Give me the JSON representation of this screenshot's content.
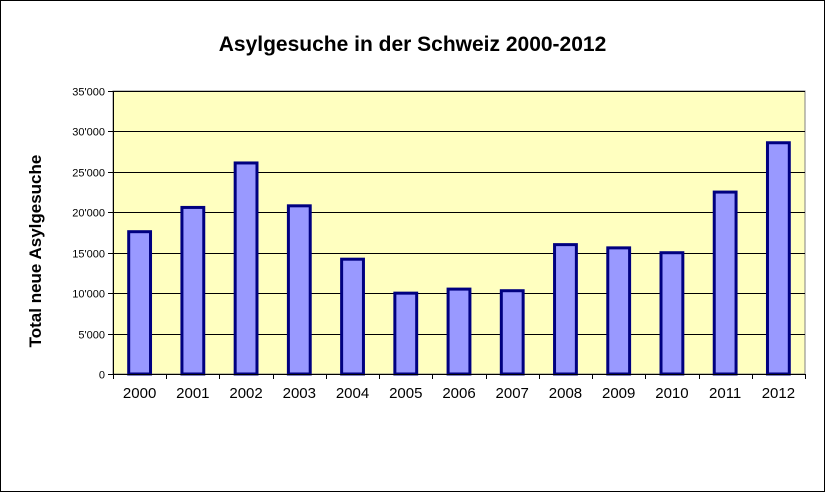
{
  "chart_data": {
    "type": "bar",
    "title": "Asylgesuche  in der Schweiz 2000-2012",
    "ylabel": "Total neue Asylgesuche",
    "xlabel": "",
    "categories": [
      "2000",
      "2001",
      "2002",
      "2003",
      "2004",
      "2005",
      "2006",
      "2007",
      "2008",
      "2009",
      "2010",
      "2011",
      "2012"
    ],
    "values": [
      17600,
      20600,
      26100,
      20800,
      14200,
      10000,
      10500,
      10300,
      16000,
      15600,
      15000,
      22500,
      28600
    ],
    "ylim": [
      0,
      35000
    ],
    "yticks": [
      0,
      5000,
      10000,
      15000,
      20000,
      25000,
      30000,
      35000
    ],
    "ytick_labels": [
      "0",
      "5'000",
      "10'000",
      "15'000",
      "20'000",
      "25'000",
      "30'000",
      "35'000"
    ],
    "grid": true,
    "legend": "none",
    "colors": {
      "plot_background": "#FFFFC0",
      "bar_fill": "#9999FF",
      "bar_edge": "#000080",
      "grid": "#000000"
    }
  }
}
